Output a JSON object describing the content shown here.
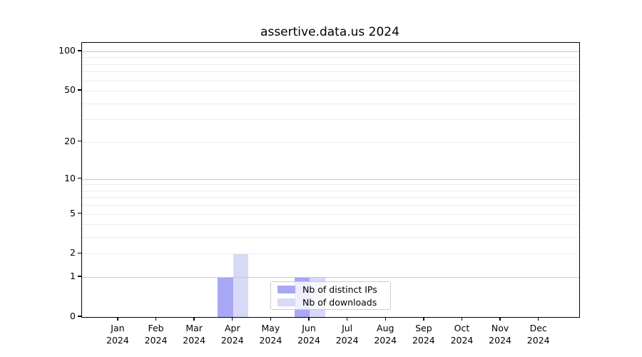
{
  "chart_data": {
    "type": "bar",
    "title": "assertive.data.us 2024",
    "categories": [
      "Jan",
      "Feb",
      "Mar",
      "Apr",
      "May",
      "Jun",
      "Jul",
      "Aug",
      "Sep",
      "Oct",
      "Nov",
      "Dec"
    ],
    "year_label": "2024",
    "series": [
      {
        "name": "Nb of distinct IPs",
        "color": "#a8a8f4",
        "values": [
          0,
          0,
          0,
          1,
          0,
          1,
          0,
          0,
          0,
          0,
          0,
          0
        ]
      },
      {
        "name": "Nb of downloads",
        "color": "#d8d8f7",
        "values": [
          0,
          0,
          0,
          2,
          0,
          1,
          0,
          0,
          0,
          0,
          0,
          0
        ]
      }
    ],
    "y_axis": {
      "scale": "log1p",
      "major_ticks": [
        0,
        1,
        2,
        5,
        10,
        20,
        50,
        100
      ],
      "minor_ticks": [
        3,
        4,
        6,
        7,
        8,
        9,
        30,
        40,
        60,
        70,
        80,
        90
      ],
      "decade_ticks": [
        1,
        10,
        100
      ],
      "ylim": [
        0,
        116
      ]
    },
    "xlabel": "",
    "ylabel": "",
    "legend": {
      "position": "lower-center"
    },
    "colors": {
      "grid_major": "#c9c9c9",
      "grid_minor": "#ececec",
      "axis": "#000000",
      "text": "#000000",
      "legend_border": "#cccccc",
      "background": "#ffffff"
    }
  }
}
